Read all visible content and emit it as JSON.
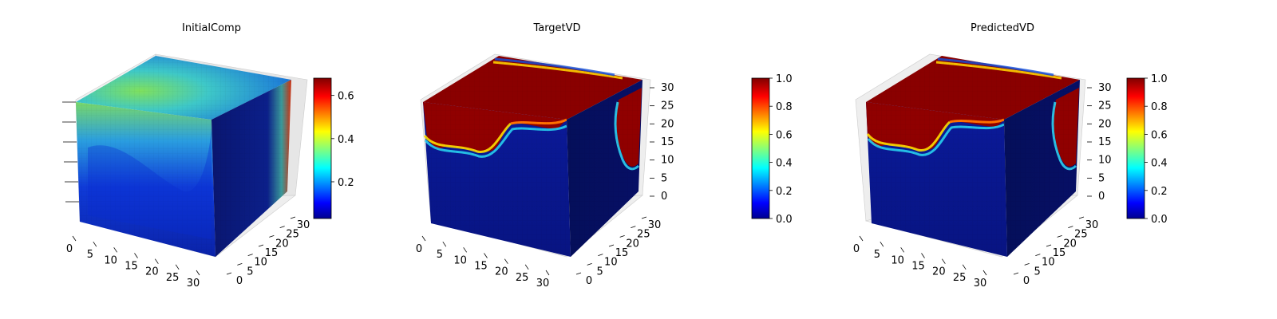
{
  "chart_data": [
    {
      "type": "heatmap",
      "title": "InitialComp",
      "axes": {
        "x_ticks": [
          "0",
          "5",
          "10",
          "15",
          "20",
          "25",
          "30"
        ],
        "y_ticks": [
          "0",
          "5",
          "10",
          "15",
          "20",
          "25",
          "30"
        ],
        "z_ticks": []
      },
      "colorbar": {
        "cmap": "jet",
        "range": [
          0.03,
          0.68
        ],
        "ticks": [
          "0.2",
          "0.4",
          "0.6"
        ],
        "tick_values": [
          0.2,
          0.4,
          0.6
        ]
      },
      "description_values": {
        "top_face_max": 0.5,
        "front_face_max": 0.55,
        "right_face_max": 0.65
      }
    },
    {
      "type": "heatmap",
      "title": "TargetVD",
      "axes": {
        "x_ticks": [
          "0",
          "5",
          "10",
          "15",
          "20",
          "25",
          "30"
        ],
        "y_ticks": [
          "0",
          "5",
          "10",
          "15",
          "20",
          "25",
          "30"
        ],
        "z_ticks": [
          "0",
          "5",
          "10",
          "15",
          "20",
          "25",
          "30"
        ]
      },
      "colorbar": {
        "cmap": "jet",
        "range": [
          0.0,
          1.0
        ],
        "ticks": [
          "0.0",
          "0.2",
          "0.4",
          "0.6",
          "0.8",
          "1.0"
        ],
        "tick_values": [
          0.0,
          0.2,
          0.4,
          0.6,
          0.8,
          1.0
        ]
      }
    },
    {
      "type": "heatmap",
      "title": "PredictedVD",
      "axes": {
        "x_ticks": [
          "0",
          "5",
          "10",
          "15",
          "20",
          "25",
          "30"
        ],
        "y_ticks": [
          "0",
          "5",
          "10",
          "15",
          "20",
          "25",
          "30"
        ],
        "z_ticks": [
          "0",
          "5",
          "10",
          "15",
          "20",
          "25",
          "30"
        ]
      },
      "colorbar": {
        "cmap": "jet",
        "range": [
          0.0,
          1.0
        ],
        "ticks": [
          "0.0",
          "0.2",
          "0.4",
          "0.6",
          "0.8",
          "1.0"
        ],
        "tick_values": [
          0.0,
          0.2,
          0.4,
          0.6,
          0.8,
          1.0
        ]
      }
    }
  ]
}
